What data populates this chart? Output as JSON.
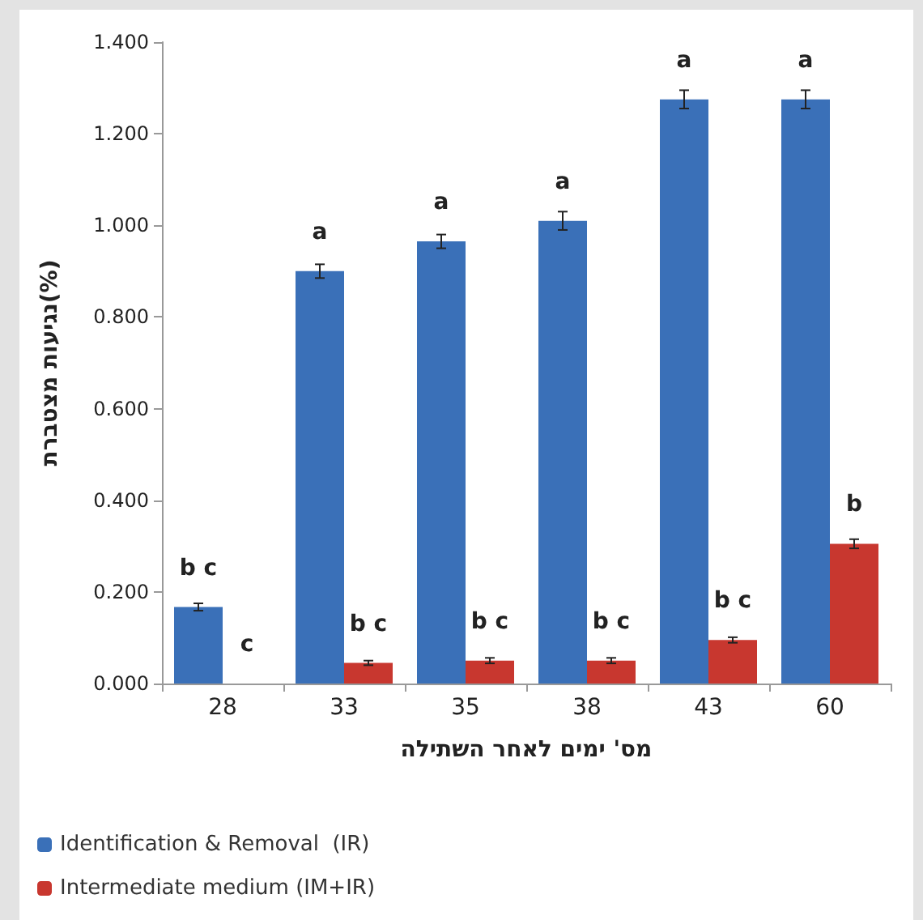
{
  "chart_data": {
    "type": "bar",
    "categories": [
      "28",
      "33",
      "35",
      "38",
      "43",
      "60"
    ],
    "series": [
      {
        "name": "Identification & Removal  (IR)",
        "color": "#3a70b8",
        "values": [
          0.167,
          0.9,
          0.965,
          1.01,
          1.275,
          1.275
        ],
        "errors": [
          0.008,
          0.015,
          0.015,
          0.02,
          0.02,
          0.02
        ]
      },
      {
        "name": "Intermediate medium (IM+IR)",
        "color": "#c8372f",
        "values": [
          0,
          0.045,
          0.05,
          0.05,
          0.095,
          0.305
        ],
        "errors": [
          null,
          0.005,
          0.006,
          0.006,
          0.006,
          0.01
        ]
      }
    ],
    "xlabel": "מס' ימים לאחר השתילה",
    "ylabel": "נגיעות מצטברת(%)",
    "ylim": [
      0,
      1.4
    ],
    "yticks": [
      {
        "value": 0,
        "label": "0.000"
      },
      {
        "value": 0.2,
        "label": "0.200"
      },
      {
        "value": 0.4,
        "label": "0.400"
      },
      {
        "value": 0.6,
        "label": "0.600"
      },
      {
        "value": 0.8,
        "label": "0.800"
      },
      {
        "value": 1,
        "label": "1.000"
      },
      {
        "value": 1.2,
        "label": "1.200"
      },
      {
        "value": 1.4,
        "label": "1.400"
      }
    ],
    "annotations": [
      {
        "text": "b c",
        "x": "28",
        "y": 0.167
      },
      {
        "text": "c",
        "x": "28",
        "y": 0
      },
      {
        "text": "a",
        "x": "33",
        "y": 0.9
      },
      {
        "text": "b c",
        "x": "33",
        "y": 0.045
      },
      {
        "text": "a",
        "x": "35",
        "y": 0.965
      },
      {
        "text": "b c",
        "x": "35",
        "y": 0.05
      },
      {
        "text": "a",
        "x": "38",
        "y": 1.01
      },
      {
        "text": "b c",
        "x": "38",
        "y": 0.05
      },
      {
        "text": "a",
        "x": "43",
        "y": 1.275
      },
      {
        "text": "b c",
        "x": "43",
        "y": 0.095
      },
      {
        "text": "a",
        "x": "60",
        "y": 1.275
      },
      {
        "text": "b",
        "x": "60",
        "y": 0.305
      }
    ],
    "grid": false,
    "legend": "bottom left"
  }
}
